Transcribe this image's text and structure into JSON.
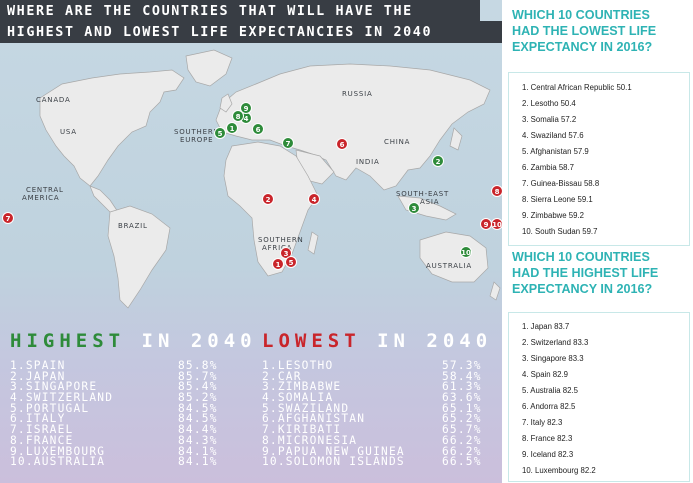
{
  "title": {
    "line1": "WHERE ARE THE COUNTRIES THAT WILL HAVE THE",
    "line2": "HIGHEST AND LOWEST LIFE EXPECTANCIES IN 2040"
  },
  "map_labels": {
    "canada": "CANADA",
    "usa": "USA",
    "russia": "RUSSIA",
    "china": "CHINA",
    "india": "INDIA",
    "brazil": "BRAZIL",
    "australia": "AUSTRALIA",
    "southern_europe_1": "SOUTHERN",
    "southern_europe_2": "EUROPE",
    "central_america_1": "CENTRAL",
    "central_america_2": "AMERICA",
    "south_east_asia_1": "SOUTH-EAST",
    "south_east_asia_2": "ASIA",
    "southern_africa_1": "SOUTHERN",
    "southern_africa_2": "AFRICA"
  },
  "pins": {
    "green": [
      "1",
      "2",
      "3",
      "4",
      "5",
      "6",
      "7",
      "8",
      "9",
      "10"
    ],
    "red": [
      "1",
      "2",
      "3",
      "4",
      "5",
      "6",
      "7",
      "8",
      "9",
      "10"
    ]
  },
  "highest": {
    "heading_word": "HIGHEST",
    "heading_in": "IN 2040",
    "items": [
      {
        "name": "1.SPAIN",
        "value": "85.8%"
      },
      {
        "name": "2.JAPAN",
        "value": "85.7%"
      },
      {
        "name": "3.SINGAPORE",
        "value": "85.4%"
      },
      {
        "name": "4.SWITZERLAND",
        "value": "85.2%"
      },
      {
        "name": "5.PORTUGAL",
        "value": "84.5%"
      },
      {
        "name": "6.ITALY",
        "value": "84.5%"
      },
      {
        "name": "7.ISRAEL",
        "value": "84.4%"
      },
      {
        "name": "8.FRANCE",
        "value": "84.3%"
      },
      {
        "name": "9.LUXEMBOURG",
        "value": "84.1%"
      },
      {
        "name": "10.AUSTRALIA",
        "value": "84.1%"
      }
    ]
  },
  "lowest": {
    "heading_word": "LOWEST",
    "heading_in": "IN 2040",
    "items": [
      {
        "name": "1.LESOTHO",
        "value": "57.3%"
      },
      {
        "name": "2.CAR",
        "value": "58.4%"
      },
      {
        "name": "3.ZIMBABWE",
        "value": "61.3%"
      },
      {
        "name": "4.SOMALIA",
        "value": "63.6%"
      },
      {
        "name": "5.SWAZILAND",
        "value": "65.1%"
      },
      {
        "name": "6.AFGHANISTAN",
        "value": "65.2%"
      },
      {
        "name": "7.KIRIBATI",
        "value": "65.7%"
      },
      {
        "name": "8.MICRONESIA",
        "value": "66.2%"
      },
      {
        "name": "9.PAPUA NEW GUINEA",
        "value": "66.2%"
      },
      {
        "name": "10.SOLOMON ISLANDS",
        "value": "66.5%"
      }
    ]
  },
  "lowest_2016": {
    "question_lines": [
      "WHICH 10 COUNTRIES",
      "HAD THE LOWEST LIFE",
      "EXPECTANCY IN 2016?"
    ],
    "items": [
      "1. Central African Republic 50.1",
      "2. Lesotho 50.4",
      "3. Somalia 57.2",
      "4. Swaziland 57.6",
      "5. Afghanistan 57.9",
      "6. Zambia 58.7",
      "7. Guinea-Bissau 58.8",
      "8. Sierra Leone 59.1",
      "9. Zimbabwe 59.2",
      "10. South Sudan 59.7"
    ]
  },
  "highest_2016": {
    "question_lines": [
      "WHICH 10 COUNTRIES",
      "HAD THE HIGHEST LIFE",
      "EXPECTANCY IN 2016?"
    ],
    "items": [
      "1. Japan 83.7",
      "2. Switzerland 83.3",
      "3. Singapore 83.3",
      "4. Spain 82.9",
      "5. Australia 82.5",
      "6. Andorra 82.5",
      "7. Italy 82.3",
      "8. France 82.3",
      "9. Iceland 82.3",
      "10. Luxembourg 82.2"
    ]
  },
  "colors": {
    "green": "#2e8b3a",
    "red": "#c9252b",
    "teal": "#2eb3b4"
  }
}
